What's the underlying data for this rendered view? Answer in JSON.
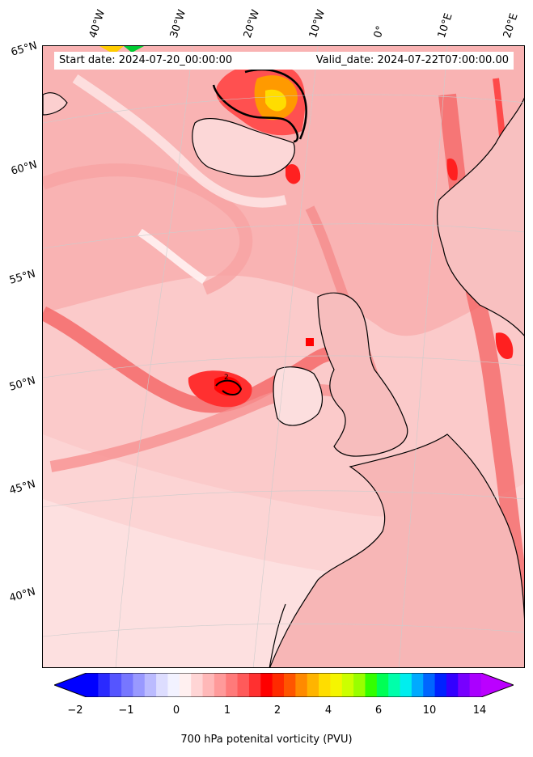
{
  "map": {
    "start_date": "Start date: 2024-07-20_00:00:00",
    "valid_date": "Valid_date: 2024-07-22T07:00:00.00",
    "contour_label": "2",
    "longitude_labels": [
      "40°W",
      "30°W",
      "20°W",
      "10°W",
      "0°",
      "10°E",
      "20°E"
    ],
    "latitude_labels": [
      "65°N",
      "60°N",
      "55°N",
      "50°N",
      "45°N",
      "40°N"
    ]
  },
  "colorbar": {
    "title": "700 hPa potenital vorticity (PVU)",
    "tick_labels": [
      "−2",
      "−1",
      "0",
      "1",
      "2",
      "4",
      "6",
      "10",
      "14"
    ],
    "colors": [
      "#0000ff",
      "#2a2aff",
      "#5555ff",
      "#7777ff",
      "#9999ff",
      "#bbbbff",
      "#ddddff",
      "#f2f2ff",
      "#fff0f0",
      "#ffd5d5",
      "#ffb8b8",
      "#ff9a9a",
      "#ff7a7a",
      "#ff5a5a",
      "#ff3030",
      "#ff0000",
      "#ff2a00",
      "#ff5500",
      "#ff8a00",
      "#ffb400",
      "#ffdd00",
      "#f5f500",
      "#ccff00",
      "#99ff00",
      "#33ff00",
      "#00ff55",
      "#00ffaa",
      "#00eeee",
      "#00aaff",
      "#0066ff",
      "#0022ff",
      "#3300ff",
      "#7700ff",
      "#aa00ff"
    ],
    "extend_low_color": "#0000ff",
    "extend_high_color": "#bb00ff"
  }
}
